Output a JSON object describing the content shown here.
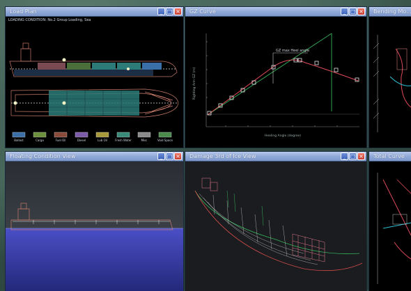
{
  "windows": [
    {
      "id": "load-plan",
      "title": "Load Plan",
      "subtitle": "LOADING CONDITION: No.2 Group Loading, Sea"
    },
    {
      "id": "gz-curve",
      "title": "GZ Curve"
    },
    {
      "id": "bending-moment",
      "title": "Bending Mo..."
    },
    {
      "id": "floating-condition",
      "title": "Floating Condition View"
    },
    {
      "id": "damage-view",
      "title": "Damage 3rd of Ice View"
    },
    {
      "id": "other-view",
      "title": "Total Curve"
    }
  ],
  "window_buttons": {
    "minimize": "_",
    "maximize": "□",
    "close": "×"
  },
  "legend": [
    {
      "label": "Ballast",
      "color": "#3b6fa8"
    },
    {
      "label": "Cargo",
      "color": "#6b8f3a"
    },
    {
      "label": "Fuel Oil",
      "color": "#8a4a3a"
    },
    {
      "label": "Diesel",
      "color": "#7b5aa8"
    },
    {
      "label": "Lub Oil",
      "color": "#a89a3a"
    },
    {
      "label": "Fresh Water",
      "color": "#3a8a7a"
    },
    {
      "label": "Misc",
      "color": "#8a8a8a"
    },
    {
      "label": "Void Space",
      "color": "#4a8a4a"
    }
  ],
  "gz_chart": {
    "annotation": "GZ max   Heel angle",
    "xlabel": "Heeling Angle (degree)",
    "ylabel": "Righting Arm GZ (m)"
  }
}
